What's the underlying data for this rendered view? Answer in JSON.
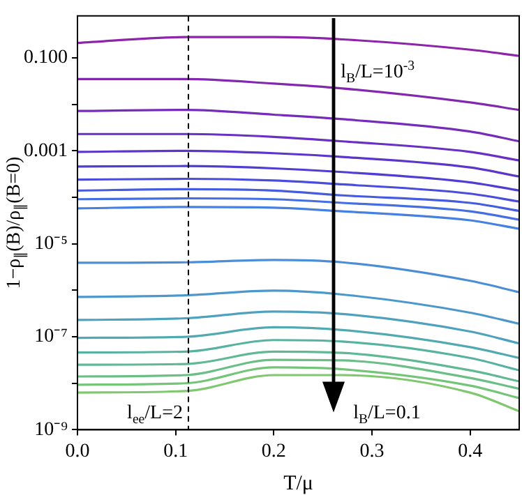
{
  "chart_data": {
    "type": "line",
    "xlabel": "T/μ",
    "ylabel": "1−ρ$_{∥}$(B)/ρ$_{∥}$(B=0)",
    "log": "y",
    "grid": false,
    "legend": false,
    "marker": "none",
    "line_style": "solid",
    "x": [
      0,
      0.11,
      0.2,
      0.27,
      0.4,
      0.45
    ],
    "xlim": [
      0,
      0.45
    ],
    "xticks": [
      {
        "value": 0,
        "label": "0.0"
      },
      {
        "value": 0.1,
        "label": "0.1"
      },
      {
        "value": 0.2,
        "label": "0.2"
      },
      {
        "value": 0.3,
        "label": "0.3"
      },
      {
        "value": 0.4,
        "label": "0.4"
      }
    ],
    "ylim": [
      1e-09,
      0.8
    ],
    "yticks": [
      {
        "value": 1e-09,
        "label": "10⁻⁹"
      },
      {
        "value": 1e-08,
        "label": null
      },
      {
        "value": 1e-07,
        "label": "10⁻⁷"
      },
      {
        "value": 1e-06,
        "label": null
      },
      {
        "value": 1e-05,
        "label": "10⁻⁵"
      },
      {
        "value": 0.0001,
        "label": null
      },
      {
        "value": 0.001,
        "label": "0.001"
      },
      {
        "value": 0.01,
        "label": null
      },
      {
        "value": 0.1,
        "label": "0.100"
      }
    ],
    "ref_lines": [
      {
        "axis": "x",
        "value": 0.113,
        "line_style": "dashed",
        "color": "#000000"
      }
    ],
    "annotations": [
      "l$_{B}$/L=10$^{-3}$",
      "l$_{B}$/L=0.1",
      "l$_{ee}$/L=2"
    ],
    "series": [
      {
        "color": "#8e24aa",
        "values": [
          0.21,
          0.28,
          0.28,
          0.25,
          0.15,
          0.11
        ]
      },
      {
        "color": "#8228b0",
        "values": [
          0.035,
          0.035,
          0.028,
          0.022,
          0.011,
          0.0076
        ]
      },
      {
        "color": "#752cba",
        "values": [
          0.0072,
          0.0076,
          0.006,
          0.0048,
          0.0026,
          0.0016
        ]
      },
      {
        "color": "#6830c4",
        "values": [
          0.0023,
          0.0023,
          0.002,
          0.0016,
          0.00095,
          0.00062
        ]
      },
      {
        "color": "#5c36cc",
        "values": [
          0.00095,
          0.001,
          0.00089,
          0.00074,
          0.00044,
          0.00028
        ]
      },
      {
        "color": "#503ed4",
        "values": [
          0.00046,
          0.00047,
          0.00042,
          0.00035,
          0.00021,
          0.00014
        ]
      },
      {
        "color": "#4a4cdc",
        "values": [
          0.00024,
          0.00025,
          0.00023,
          0.00019,
          0.00012,
          8.1e-05
        ]
      },
      {
        "color": "#465ce0",
        "values": [
          0.00014,
          0.00015,
          0.00014,
          0.00011,
          7.6e-05,
          5.1e-05
        ]
      },
      {
        "color": "#446ee2",
        "values": [
          9.1e-05,
          9.5e-05,
          9.1e-05,
          7.6e-05,
          5e-05,
          3.3e-05
        ]
      },
      {
        "color": "#4680e0",
        "values": [
          5.8e-05,
          6.2e-05,
          6e-05,
          5e-05,
          3.2e-05,
          2.1e-05
        ]
      },
      {
        "color": "#4a8ed8",
        "values": [
          3.9e-06,
          4e-06,
          4.5e-06,
          4e-06,
          1.6e-06,
          9.1e-07
        ]
      },
      {
        "color": "#4c98cc",
        "values": [
          7.2e-07,
          7.8e-07,
          9.8e-07,
          8.1e-07,
          3.3e-07,
          1.9e-07
        ]
      },
      {
        "color": "#4ea2be",
        "values": [
          2.3e-07,
          2.5e-07,
          3.5e-07,
          3.1e-07,
          1.3e-07,
          7.2e-08
        ]
      },
      {
        "color": "#52aab0",
        "values": [
          9.5e-08,
          1e-07,
          1.6e-07,
          1.4e-07,
          6e-08,
          3.5e-08
        ]
      },
      {
        "color": "#58b2a2",
        "values": [
          4.6e-08,
          4.8e-08,
          8.5e-08,
          7.9e-08,
          3.5e-08,
          1.9e-08
        ]
      },
      {
        "color": "#60b894",
        "values": [
          2.5e-08,
          2.6e-08,
          4.8e-08,
          4.5e-08,
          1.9e-08,
          1.1e-08
        ]
      },
      {
        "color": "#6abe86",
        "values": [
          1.4e-08,
          1.5e-08,
          3.2e-08,
          3.1e-08,
          1.3e-08,
          7.6e-09
        ]
      },
      {
        "color": "#74c47a",
        "values": [
          9.3e-09,
          1e-08,
          2.2e-08,
          2e-08,
          8.9e-09,
          4.8e-09
        ]
      },
      {
        "color": "#80c870",
        "values": [
          6.3e-09,
          6.8e-09,
          1.5e-08,
          1.5e-08,
          6.3e-09,
          2.5e-09
        ]
      }
    ]
  }
}
